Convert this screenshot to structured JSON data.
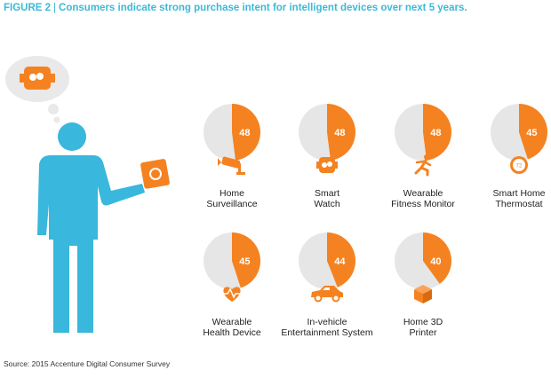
{
  "title": {
    "figure": "FIGURE 2",
    "text": "Consumers indicate strong purchase intent for intelligent devices over next 5 years."
  },
  "source": "Source: 2015 Accenture Digital Consumer Survey",
  "colors": {
    "accent": "#f58220",
    "pie_rest": "#e6e6e6",
    "person": "#39b7dc",
    "title": "#3cb9d8"
  },
  "chart_data": {
    "type": "pie",
    "title": "Consumers indicate strong purchase intent for intelligent devices over next 5 years.",
    "value_unit": "%",
    "items": [
      {
        "label_lines": [
          "Home",
          "Surveillance"
        ],
        "value": 48,
        "icon": "security-camera-icon"
      },
      {
        "label_lines": [
          "Smart",
          "Watch"
        ],
        "value": 48,
        "icon": "smartwatch-icon"
      },
      {
        "label_lines": [
          "Wearable",
          "Fitness Monitor"
        ],
        "value": 48,
        "icon": "running-person-icon"
      },
      {
        "label_lines": [
          "Smart Home",
          "Thermostat"
        ],
        "value": 45,
        "icon": "thermostat-icon"
      },
      {
        "label_lines": [
          "Wearable",
          "Health Device"
        ],
        "value": 45,
        "icon": "heart-pulse-icon"
      },
      {
        "label_lines": [
          "In-vehicle",
          "Entertainment System"
        ],
        "value": 44,
        "icon": "car-icon"
      },
      {
        "label_lines": [
          "Home 3D",
          "Printer"
        ],
        "value": 40,
        "icon": "3d-printer-box-icon"
      }
    ]
  },
  "illustration": {
    "person_icon": "person-icon",
    "thought_icon": "thought-bubble-icon",
    "device_icon": "handheld-device-icon"
  }
}
